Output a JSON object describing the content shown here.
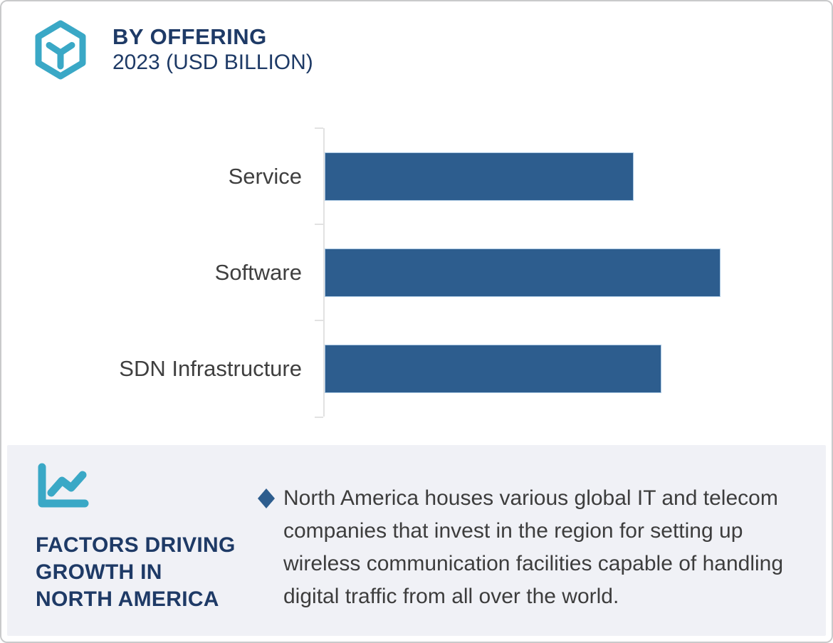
{
  "header": {
    "icon": "hexagon-cube-icon",
    "title": "BY OFFERING",
    "subtitle": "2023 (USD BILLION)"
  },
  "chart_data": {
    "type": "bar",
    "orientation": "horizontal",
    "title": "BY OFFERING",
    "subtitle": "2023 (USD BILLION)",
    "categories": [
      "Service",
      "Software",
      "SDN Infrastructure"
    ],
    "values": [
      78,
      100,
      85
    ],
    "values_note": "No numeric data labels or axis tick values are shown in the chart; values are relative bar lengths scaled so the longest bar (Software) = 100",
    "bar_color": "#2D5D8E",
    "axis": {
      "tick_labels_visible": false,
      "gridlines": false,
      "legend": "none"
    }
  },
  "factors_panel": {
    "icon": "line-chart-icon",
    "heading_lines": [
      "FACTORS DRIVING",
      "GROWTH IN",
      "NORTH AMERICA"
    ],
    "bullet": "North America houses various global IT and telecom companies that invest in the region for setting up wireless communication facilities capable of handling digital traffic from all over the world."
  },
  "colors": {
    "navy": "#1E3A66",
    "teal": "#3AA8C6",
    "bar_blue": "#2D5D8E",
    "bar_border": "#A9C7E2",
    "panel_bg": "#F0F1F6",
    "axis_gray": "#E2E2E2",
    "body_text": "#3D3D3D",
    "label_text": "#3F3F3F",
    "card_border": "#C9CACB"
  }
}
